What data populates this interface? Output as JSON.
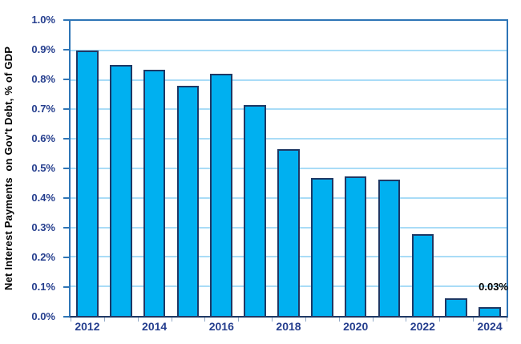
{
  "chart_data": {
    "type": "bar",
    "title": "",
    "ylabel": "Net Interest Payments  on Gov't Debt, % of GDP",
    "xlabel": "",
    "categories": [
      "2012",
      "2013",
      "2014",
      "2015",
      "2016",
      "2017",
      "2018",
      "2019",
      "2020",
      "2021",
      "2022",
      "2023",
      "2024"
    ],
    "values": [
      0.9,
      0.85,
      0.835,
      0.78,
      0.822,
      0.715,
      0.565,
      0.468,
      0.473,
      0.462,
      0.278,
      0.06,
      0.03
    ],
    "value_unit": "% of GDP",
    "ylim": [
      0.0,
      1.0
    ],
    "y_ticks": [
      "0.0%",
      "0.1%",
      "0.2%",
      "0.3%",
      "0.4%",
      "0.5%",
      "0.6%",
      "0.7%",
      "0.8%",
      "0.9%",
      "1.0%"
    ],
    "x_tick_labels_shown": [
      "2012",
      "2014",
      "2016",
      "2018",
      "2020",
      "2022",
      "2024"
    ],
    "x_label_interval": 2,
    "grid": "horizontal",
    "legend": "none",
    "annotation": {
      "text": "0.03%",
      "category": "2024"
    },
    "colors": {
      "bar_fill": "#00B0F0",
      "bar_border": "#1F3864",
      "plot_border": "#2E75B6",
      "gridline": "#A9DCF7",
      "tick_label": "#253E8E",
      "category_axis": "#1F3864",
      "x_tickmark": "#92A9C7",
      "annotation_color": "#000000",
      "y_title_color": "#000000"
    }
  }
}
